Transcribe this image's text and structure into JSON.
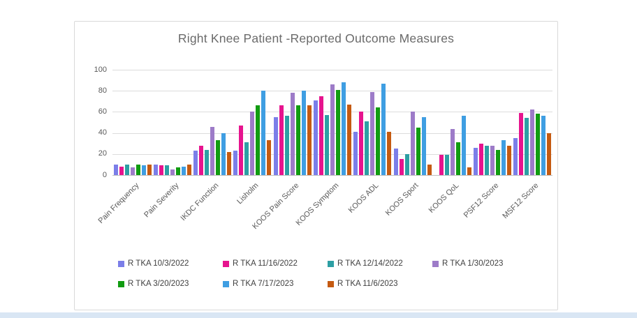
{
  "chart_data": {
    "type": "bar",
    "title": "Right Knee Patient -Reported Outcome Measures",
    "categories": [
      "Pain Frequency",
      "Pain Severity",
      "IKDC Function",
      "Lisholm",
      "KOOS Pain Score",
      "KOOS Symptom",
      "KOOS ADL",
      "KOOS Sport",
      "KOOS QoL",
      "PSF12 Score",
      "MSF12 Score"
    ],
    "series": [
      {
        "name": "R TKA 10/3/2022",
        "color": "#7b7ee8",
        "values": [
          10,
          10,
          23,
          23,
          55,
          71,
          41,
          25,
          0,
          26,
          35
        ]
      },
      {
        "name": "R TKA 11/16/2022",
        "color": "#e6148e",
        "values": [
          8,
          9,
          28,
          47,
          66,
          75,
          60,
          15,
          19,
          30,
          59
        ]
      },
      {
        "name": "R TKA 12/14/2022",
        "color": "#2d9fa4",
        "values": [
          10,
          9,
          24,
          31,
          56,
          57,
          51,
          20,
          19,
          28,
          54
        ]
      },
      {
        "name": "R TKA 1/30/2023",
        "color": "#9d7bc8",
        "values": [
          7,
          5,
          46,
          60,
          78,
          86,
          79,
          60,
          44,
          28,
          62
        ]
      },
      {
        "name": "R TKA 3/20/2023",
        "color": "#119c11",
        "values": [
          10,
          7,
          33,
          66,
          66,
          81,
          64,
          45,
          31,
          24,
          58
        ]
      },
      {
        "name": "R TKA 7/17/2023",
        "color": "#3f9ee2",
        "values": [
          9,
          8,
          40,
          80,
          80,
          88,
          87,
          55,
          56,
          33,
          56
        ]
      },
      {
        "name": "R TKA 11/6/2023",
        "color": "#c55a11",
        "values": [
          10,
          10,
          22,
          33,
          66,
          67,
          41,
          10,
          7,
          28,
          40
        ]
      }
    ],
    "ylim": [
      0,
      100
    ],
    "yticks": [
      0,
      20,
      40,
      60,
      80,
      100
    ],
    "grid": "horizontal",
    "legend_position": "bottom"
  },
  "styles": {
    "grid_color": "#dcdcdc",
    "axis_line_color": "#bfbfbf",
    "title_color": "#6a6a6a",
    "tick_label_color": "#595959",
    "legend_text_color": "#404040",
    "panel_border_color": "#d9d9d9",
    "bottom_strip_color": "#d9e6f4"
  }
}
